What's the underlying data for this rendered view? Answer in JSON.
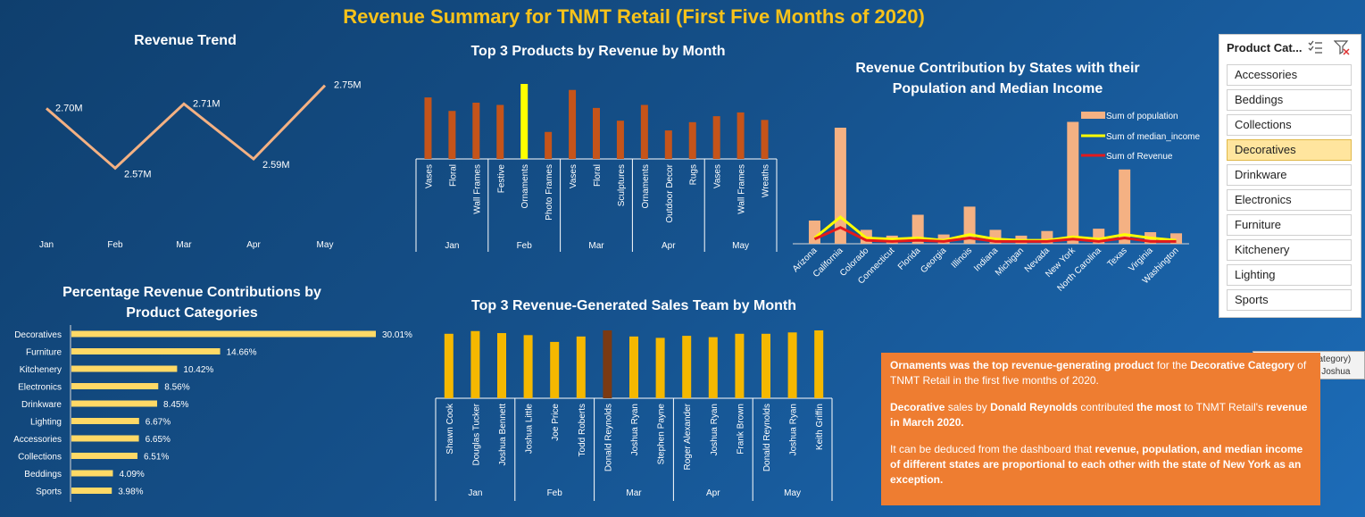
{
  "page_title": "Revenue Summary for TNMT Retail (First Five Months of 2020)",
  "colors": {
    "accent_title": "#f8c21a",
    "bar_brown": "#c5541a",
    "bar_highlight": "#ffff00",
    "bar_gold": "#f5b800",
    "bar_team_highlight": "#7b3a13",
    "line_peach": "#f4b183",
    "panel_orange": "#ee7d31"
  },
  "chart_data": [
    {
      "id": "revenue_trend",
      "type": "line",
      "title": "Revenue Trend",
      "categories": [
        "Jan",
        "Feb",
        "Mar",
        "Apr",
        "May"
      ],
      "values": [
        2.7,
        2.57,
        2.71,
        2.59,
        2.75
      ],
      "data_labels": [
        "2.70M",
        "2.57M",
        "2.71M",
        "2.59M",
        "2.75M"
      ]
    },
    {
      "id": "top3_products",
      "type": "bar",
      "title": "Top 3 Products by Revenue by Month",
      "groups": [
        {
          "month": "Jan",
          "items": [
            {
              "name": "Vases",
              "value": 0.82
            },
            {
              "name": "Floral",
              "value": 0.64
            },
            {
              "name": "Wall Frames",
              "value": 0.75
            }
          ]
        },
        {
          "month": "Feb",
          "items": [
            {
              "name": "Festive",
              "value": 0.72
            },
            {
              "name": "Ornaments",
              "value": 1.0,
              "highlight": true
            },
            {
              "name": "Photo Frames",
              "value": 0.36
            }
          ]
        },
        {
          "month": "Mar",
          "items": [
            {
              "name": "Vases",
              "value": 0.92
            },
            {
              "name": "Floral",
              "value": 0.68
            },
            {
              "name": "Sculptures",
              "value": 0.51
            }
          ]
        },
        {
          "month": "Apr",
          "items": [
            {
              "name": "Ornaments",
              "value": 0.72
            },
            {
              "name": "Outdoor Decor",
              "value": 0.38
            },
            {
              "name": "Rugs",
              "value": 0.49
            }
          ]
        },
        {
          "month": "May",
          "items": [
            {
              "name": "Vases",
              "value": 0.57
            },
            {
              "name": "Wall Frames",
              "value": 0.62
            },
            {
              "name": "Wreaths",
              "value": 0.52
            }
          ]
        }
      ]
    },
    {
      "id": "states",
      "type": "bar",
      "title_line1": "Revenue Contribution by States with their",
      "title_line2": "Population and Median Income",
      "categories": [
        "Arizona",
        "California",
        "Colorado",
        "Connecticut",
        "Florida",
        "Georgia",
        "Illinois",
        "Indiana",
        "Michigan",
        "Nevada",
        "New York",
        "North Carolina",
        "Texas",
        "Virginia",
        "Washington"
      ],
      "series": [
        {
          "name": "Sum of population",
          "type": "bar",
          "values": [
            0.2,
            1.0,
            0.12,
            0.07,
            0.25,
            0.08,
            0.32,
            0.12,
            0.07,
            0.11,
            1.05,
            0.13,
            0.64,
            0.1,
            0.09
          ]
        },
        {
          "name": "Sum of median_income",
          "type": "line",
          "values": [
            0.05,
            0.23,
            0.05,
            0.04,
            0.05,
            0.03,
            0.08,
            0.04,
            0.03,
            0.03,
            0.06,
            0.04,
            0.08,
            0.05,
            0.03
          ]
        },
        {
          "name": "Sum of Revenue",
          "type": "line",
          "values": [
            0.04,
            0.14,
            0.03,
            0.02,
            0.03,
            0.02,
            0.05,
            0.02,
            0.02,
            0.02,
            0.04,
            0.02,
            0.05,
            0.02,
            0.02
          ]
        }
      ]
    },
    {
      "id": "category_pct",
      "type": "bar",
      "orientation": "horizontal",
      "title_line1": "Percentage Revenue Contributions by",
      "title_line2": "Product Categories",
      "categories": [
        "Decoratives",
        "Furniture",
        "Kitchenery",
        "Electronics",
        "Drinkware",
        "Lighting",
        "Accessories",
        "Collections",
        "Beddings",
        "Sports"
      ],
      "values": [
        30.01,
        14.66,
        10.42,
        8.56,
        8.45,
        6.67,
        6.65,
        6.51,
        4.09,
        3.98
      ],
      "data_labels": [
        "30.01%",
        "14.66%",
        "10.42%",
        "8.56%",
        "8.45%",
        "6.67%",
        "6.65%",
        "6.51%",
        "4.09%",
        "3.98%"
      ]
    },
    {
      "id": "sales_team",
      "type": "bar",
      "title": "Top 3 Revenue-Generated Sales Team by Month",
      "groups": [
        {
          "month": "Jan",
          "items": [
            {
              "name": "Shawn Cook",
              "value": 0.95
            },
            {
              "name": "Douglas Tucker",
              "value": 0.99
            },
            {
              "name": "Joshua Bennett",
              "value": 0.96
            }
          ]
        },
        {
          "month": "Feb",
          "items": [
            {
              "name": "Joshua Little",
              "value": 0.93
            },
            {
              "name": "Joe Price",
              "value": 0.83
            },
            {
              "name": "Todd Roberts",
              "value": 0.91
            }
          ]
        },
        {
          "month": "Mar",
          "items": [
            {
              "name": "Donald Reynolds",
              "value": 1.0,
              "highlight": true
            },
            {
              "name": "Joshua Ryan",
              "value": 0.91
            },
            {
              "name": "Stephen Payne",
              "value": 0.89
            }
          ]
        },
        {
          "month": "Apr",
          "items": [
            {
              "name": "Roger Alexander",
              "value": 0.92
            },
            {
              "name": "Joshua Ryan",
              "value": 0.9
            },
            {
              "name": "Frank Brown",
              "value": 0.95
            }
          ]
        },
        {
          "month": "May",
          "items": [
            {
              "name": "Donald Reynolds",
              "value": 0.95
            },
            {
              "name": "Joshua Ryan",
              "value": 0.97
            },
            {
              "name": "Keith Griffin",
              "value": 1.0
            }
          ]
        }
      ]
    }
  ],
  "slicer": {
    "title": "Product Cat...",
    "icons": [
      "multi-select-icon",
      "clear-filter-icon"
    ],
    "items": [
      "Accessories",
      "Beddings",
      "Collections",
      "Decoratives",
      "Drinkware",
      "Electronics",
      "Furniture",
      "Kitchenery",
      "Lighting",
      "Sports"
    ],
    "selected": "Decoratives"
  },
  "tooltip": {
    "line1": "Horizontal (Category)",
    "line2": "Category: Mar - Joshua"
  },
  "insights": {
    "p1": [
      {
        "t": "Ornaments was the ",
        "b": true
      },
      {
        "t": "top revenue-generating product",
        "b": true
      },
      {
        "t": " for the ",
        "b": false
      },
      {
        "t": "Decorative",
        "b": true
      },
      {
        "t": " ",
        "b": false
      },
      {
        "t": "Category",
        "b": true
      },
      {
        "t": " of TNMT Retail in the first five months of 2020.",
        "b": false
      }
    ],
    "p2": [
      {
        "t": "Decorative",
        "b": true
      },
      {
        "t": " sales by ",
        "b": false
      },
      {
        "t": "Donald Reynolds",
        "b": true
      },
      {
        "t": " contributed ",
        "b": false
      },
      {
        "t": "the most",
        "b": true
      },
      {
        "t": " to TNMT Retail's ",
        "b": false
      },
      {
        "t": "revenue in March 2020.",
        "b": true
      }
    ],
    "p3": [
      {
        "t": "It can be deduced from the dashboard that ",
        "b": false
      },
      {
        "t": "revenue, population, and median income of different states are proportional to each other with the state of New York as an exception.",
        "b": true
      }
    ]
  }
}
